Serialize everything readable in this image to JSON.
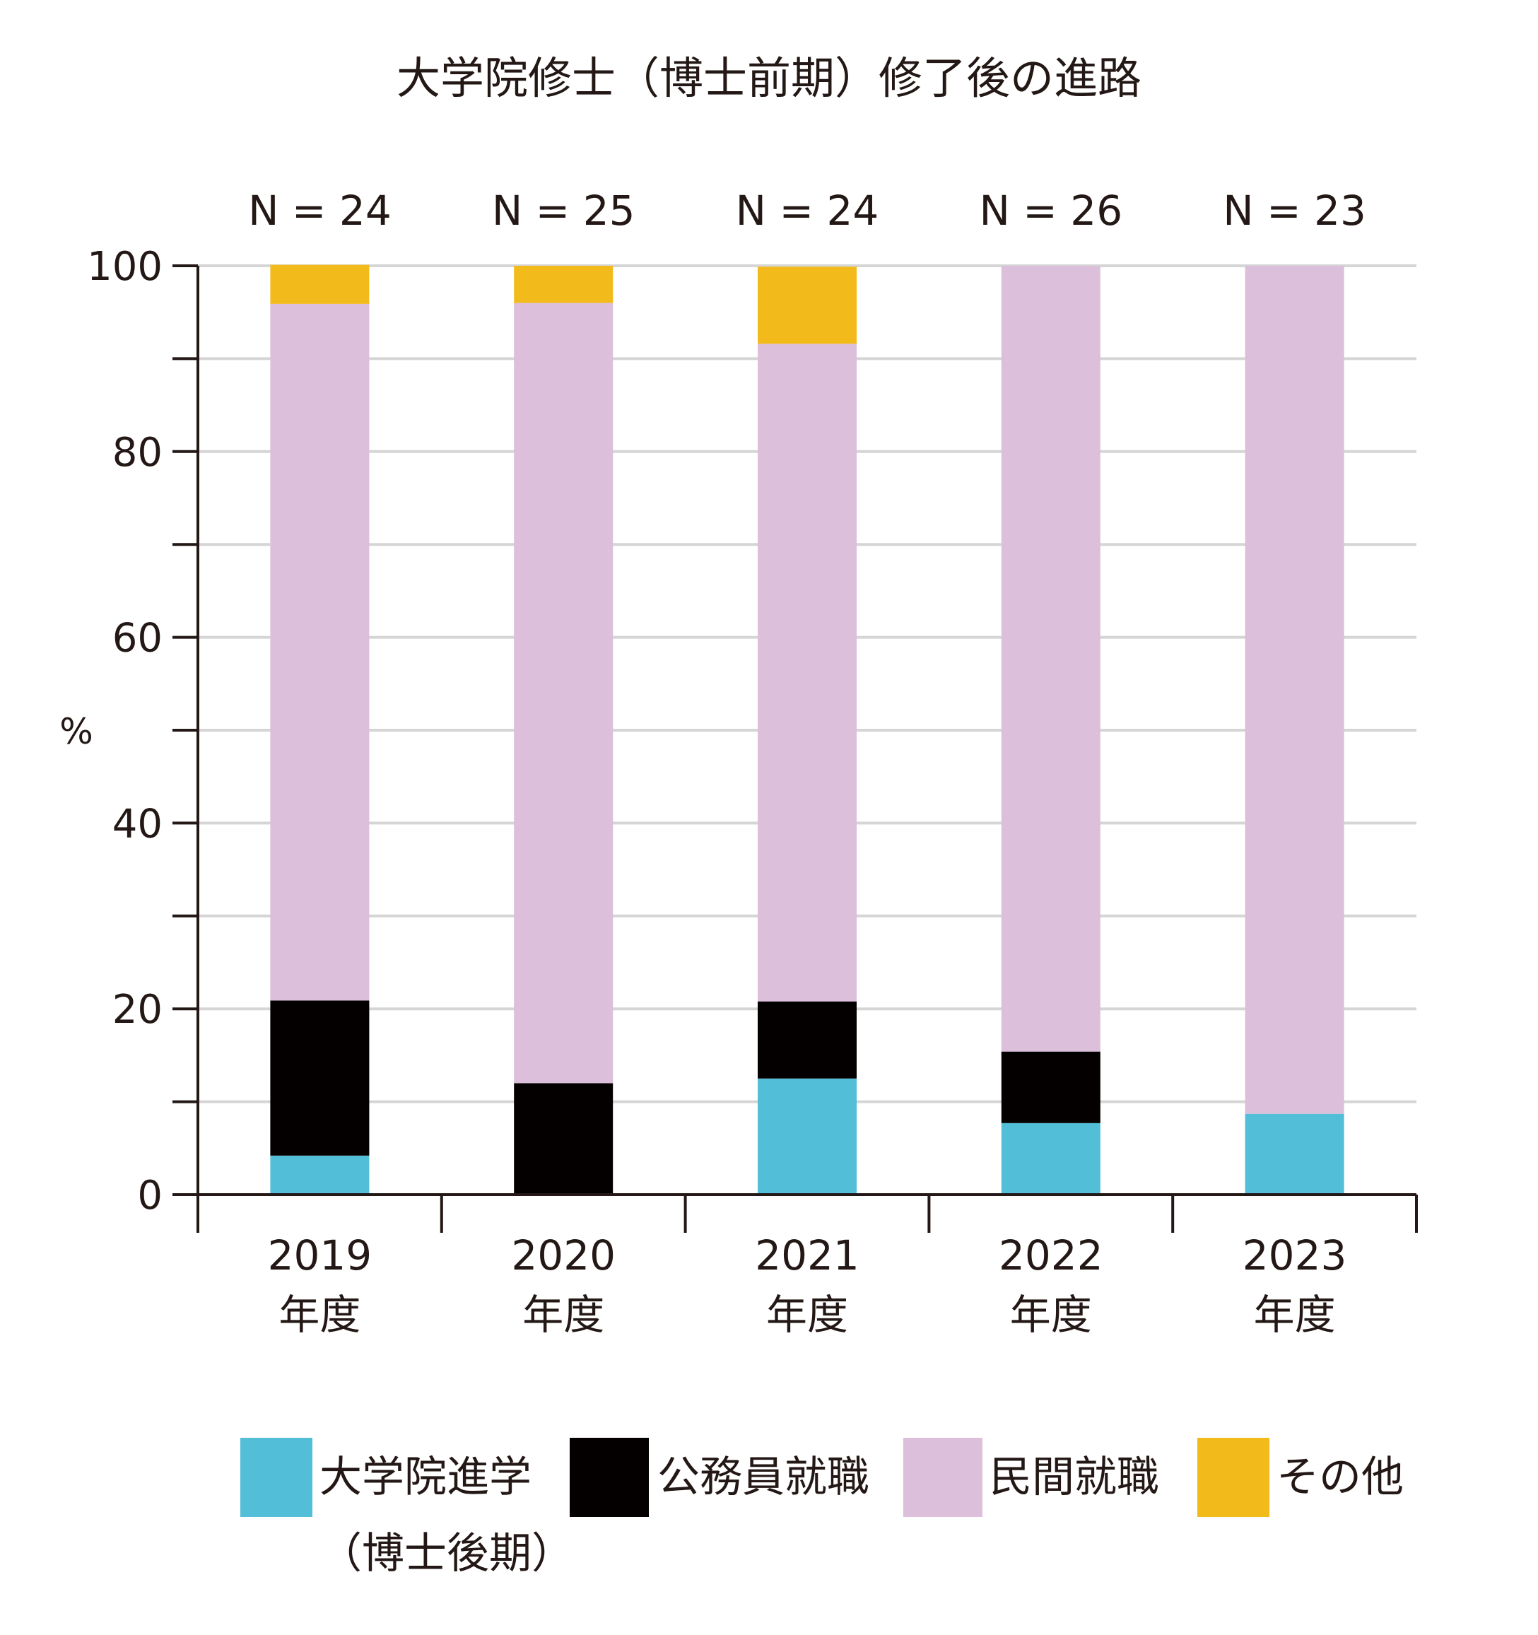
{
  "chart_data": {
    "type": "bar",
    "stacked": true,
    "title": "大学院修士（博士前期）修了後の進路",
    "ylabel": "%",
    "ylim": [
      0,
      100
    ],
    "yticks": [
      0,
      20,
      40,
      60,
      80,
      100
    ],
    "grid": true,
    "legend_position": "bottom",
    "categories": [
      {
        "year": "2019",
        "unit": "年度",
        "n": "N = 24"
      },
      {
        "year": "2020",
        "unit": "年度",
        "n": "N = 25"
      },
      {
        "year": "2021",
        "unit": "年度",
        "n": "N = 24"
      },
      {
        "year": "2022",
        "unit": "年度",
        "n": "N = 26"
      },
      {
        "year": "2023",
        "unit": "年度",
        "n": "N = 23"
      }
    ],
    "series": [
      {
        "key": "doctoral",
        "name": "大学院進学",
        "name_line2": "（博士後期）",
        "color": "#52BED8",
        "values": [
          4.2,
          0,
          12.5,
          7.7,
          8.7
        ]
      },
      {
        "key": "civil",
        "name": "公務員就職",
        "color": "#040000",
        "values": [
          16.7,
          12.0,
          8.3,
          7.7,
          0
        ]
      },
      {
        "key": "private",
        "name": "民間就職",
        "color": "#DCBFDB",
        "values": [
          75.0,
          84.0,
          70.8,
          84.6,
          91.3
        ]
      },
      {
        "key": "other",
        "name": "その他",
        "color": "#F3BA1C",
        "values": [
          4.2,
          4.0,
          8.3,
          0,
          0
        ]
      }
    ]
  }
}
